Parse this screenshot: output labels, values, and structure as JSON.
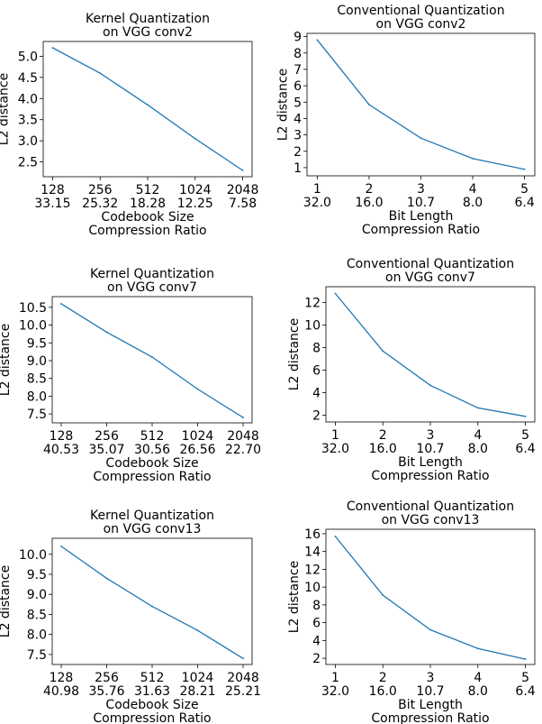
{
  "chart_data": [
    {
      "type": "line",
      "title_lines": [
        "Kernel Quantization",
        "on VGG conv2"
      ],
      "x": [
        128,
        256,
        512,
        1024,
        2048
      ],
      "x_tick_labels": [
        "128",
        "256",
        "512",
        "1024",
        "2048"
      ],
      "x_tick_labels_2": [
        "33.15",
        "25.32",
        "18.28",
        "12.25",
        "7.58"
      ],
      "xlabel_lines": [
        "Codebook Size",
        "Compression Ratio"
      ],
      "ylabel": "L2 distance",
      "y": [
        5.2,
        4.6,
        3.85,
        3.05,
        2.3
      ],
      "y_ticks": [
        2.5,
        3.0,
        3.5,
        4.0,
        4.5,
        5.0
      ],
      "y_tick_labels": [
        "2.5",
        "3.0",
        "3.5",
        "4.0",
        "4.5",
        "5.0"
      ],
      "ylim": [
        2.15,
        5.35
      ],
      "color": "#1f77b4",
      "grid": false
    },
    {
      "type": "line",
      "title_lines": [
        "Conventional Quantization",
        "on VGG conv2"
      ],
      "x": [
        1,
        2,
        3,
        4,
        5
      ],
      "x_tick_labels": [
        "1",
        "2",
        "3",
        "4",
        "5"
      ],
      "x_tick_labels_2": [
        "32.0",
        "16.0",
        "10.7",
        "8.0",
        "6.4"
      ],
      "xlabel_lines": [
        "Bit Length",
        "Compression Ratio"
      ],
      "ylabel": "L2 distance",
      "y": [
        8.8,
        4.85,
        2.8,
        1.55,
        0.9
      ],
      "y_ticks": [
        1,
        2,
        3,
        4,
        5,
        6,
        7,
        8,
        9
      ],
      "y_tick_labels": [
        "1",
        "2",
        "3",
        "4",
        "5",
        "6",
        "7",
        "8",
        "9"
      ],
      "ylim": [
        0.5,
        9.2
      ],
      "color": "#1f77b4",
      "grid": false
    },
    {
      "type": "line",
      "title_lines": [
        "Kernel Quantization",
        "on VGG conv7"
      ],
      "x": [
        128,
        256,
        512,
        1024,
        2048
      ],
      "x_tick_labels": [
        "128",
        "256",
        "512",
        "1024",
        "2048"
      ],
      "x_tick_labels_2": [
        "40.53",
        "35.07",
        "30.56",
        "26.56",
        "22.70"
      ],
      "xlabel_lines": [
        "Codebook Size",
        "Compression Ratio"
      ],
      "ylabel": "L2 distance",
      "y": [
        10.6,
        9.8,
        9.1,
        8.2,
        7.4
      ],
      "y_ticks": [
        7.5,
        8.0,
        8.5,
        9.0,
        9.5,
        10.0,
        10.5
      ],
      "y_tick_labels": [
        "7.5",
        "8.0",
        "8.5",
        "9.0",
        "9.5",
        "10.0",
        "10.5"
      ],
      "ylim": [
        7.25,
        10.8
      ],
      "color": "#1f77b4",
      "grid": false
    },
    {
      "type": "line",
      "title_lines": [
        "Conventional Quantization",
        "on VGG conv7"
      ],
      "x": [
        1,
        2,
        3,
        4,
        5
      ],
      "x_tick_labels": [
        "1",
        "2",
        "3",
        "4",
        "5"
      ],
      "x_tick_labels_2": [
        "32.0",
        "16.0",
        "10.7",
        "8.0",
        "6.4"
      ],
      "xlabel_lines": [
        "Bit Length",
        "Compression Ratio"
      ],
      "ylabel": "L2 distance",
      "y": [
        12.8,
        7.7,
        4.65,
        2.65,
        1.9
      ],
      "y_ticks": [
        2,
        4,
        6,
        8,
        10,
        12
      ],
      "y_tick_labels": [
        "2",
        "4",
        "6",
        "8",
        "10",
        "12"
      ],
      "ylim": [
        1.4,
        13.4
      ],
      "color": "#1f77b4",
      "grid": false
    },
    {
      "type": "line",
      "title_lines": [
        "Kernel Quantization",
        "on VGG conv13"
      ],
      "x": [
        128,
        256,
        512,
        1024,
        2048
      ],
      "x_tick_labels": [
        "128",
        "256",
        "512",
        "1024",
        "2048"
      ],
      "x_tick_labels_2": [
        "40.98",
        "35.76",
        "31.63",
        "28.21",
        "25.21"
      ],
      "xlabel_lines": [
        "Codebook Size",
        "Compression Ratio"
      ],
      "ylabel": "L2 distance",
      "y": [
        10.2,
        9.4,
        8.7,
        8.1,
        7.4
      ],
      "y_ticks": [
        7.5,
        8.0,
        8.5,
        9.0,
        9.5,
        10.0
      ],
      "y_tick_labels": [
        "7.5",
        "8.0",
        "8.5",
        "9.0",
        "9.5",
        "10.0"
      ],
      "ylim": [
        7.25,
        10.4
      ],
      "color": "#1f77b4",
      "grid": false
    },
    {
      "type": "line",
      "title_lines": [
        "Conventional Quantization",
        "on VGG conv13"
      ],
      "x": [
        1,
        2,
        3,
        4,
        5
      ],
      "x_tick_labels": [
        "1",
        "2",
        "3",
        "4",
        "5"
      ],
      "x_tick_labels_2": [
        "32.0",
        "16.0",
        "10.7",
        "8.0",
        "6.4"
      ],
      "xlabel_lines": [
        "Bit Length",
        "Compression Ratio"
      ],
      "ylabel": "L2 distance",
      "y": [
        15.7,
        9.1,
        5.2,
        3.1,
        1.9
      ],
      "y_ticks": [
        2,
        4,
        6,
        8,
        10,
        12,
        14,
        16
      ],
      "y_tick_labels": [
        "2",
        "4",
        "6",
        "8",
        "10",
        "12",
        "14",
        "16"
      ],
      "ylim": [
        1.3,
        16.5
      ],
      "color": "#1f77b4",
      "grid": false
    }
  ]
}
